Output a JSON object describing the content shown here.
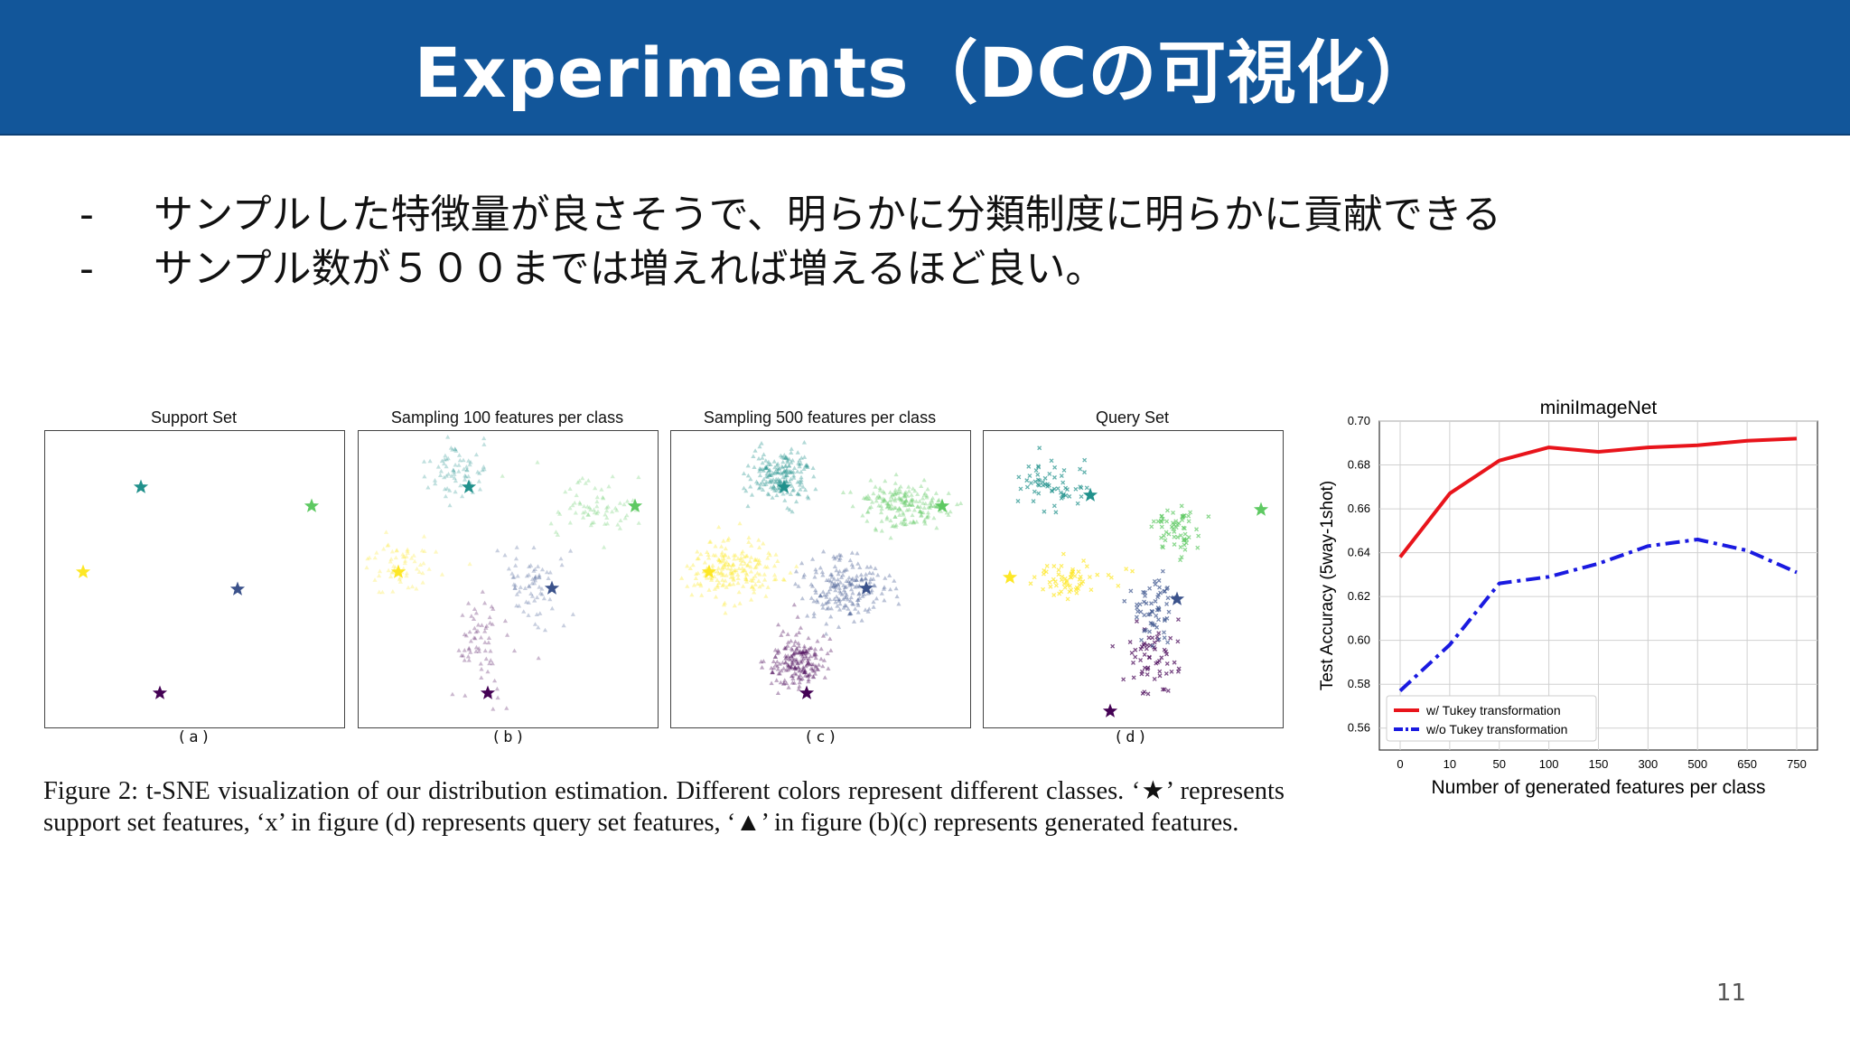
{
  "slide": {
    "title": "Experiments（DCの可視化）",
    "bullets": [
      {
        "marker": "-",
        "text": "サンプルした特徴量が良さそうで、明らかに分類制度に明らかに貢献できる"
      },
      {
        "marker": "-",
        "text": "サンプル数が５００までは増えれば増えるほど良い。"
      }
    ],
    "page_number": "11"
  },
  "figure": {
    "panels": [
      {
        "title": "Support Set",
        "label": "(a)"
      },
      {
        "title": "Sampling 100 features per class",
        "label": "(b)"
      },
      {
        "title": "Sampling 500 features per class",
        "label": "(c)"
      },
      {
        "title": "Query Set",
        "label": "(d)"
      }
    ],
    "class_colors": [
      "#440154",
      "#3b528b",
      "#21918c",
      "#5ec962",
      "#fde725"
    ],
    "caption": "Figure 2: t-SNE visualization of our distribution estimation. Different colors represent different classes. ‘★’ represents support set features, ‘x’ in figure (d) represents query set features, ‘▲’ in figure (b)(c) represents generated features."
  },
  "chart_data": {
    "type": "line",
    "title": "miniImageNet",
    "xlabel": "Number of generated features per class",
    "ylabel": "Test Accuracy (5way-1shot)",
    "categories": [
      "0",
      "10",
      "50",
      "100",
      "150",
      "300",
      "500",
      "650",
      "750"
    ],
    "ylim": [
      0.55,
      0.7
    ],
    "yticks": [
      "0.56",
      "0.58",
      "0.60",
      "0.62",
      "0.64",
      "0.66",
      "0.68",
      "0.70"
    ],
    "grid": true,
    "legend_position": "lower-left",
    "series": [
      {
        "name": "w/ Tukey transformation",
        "color": "#e8141b",
        "style": "solid",
        "values": [
          0.638,
          0.667,
          0.682,
          0.688,
          0.686,
          0.688,
          0.689,
          0.691,
          0.692
        ]
      },
      {
        "name": "w/o Tukey transformation",
        "color": "#1a1ae0",
        "style": "dashdot",
        "values": [
          0.577,
          0.598,
          0.626,
          0.629,
          0.635,
          0.643,
          0.646,
          0.641,
          0.631
        ]
      }
    ]
  }
}
